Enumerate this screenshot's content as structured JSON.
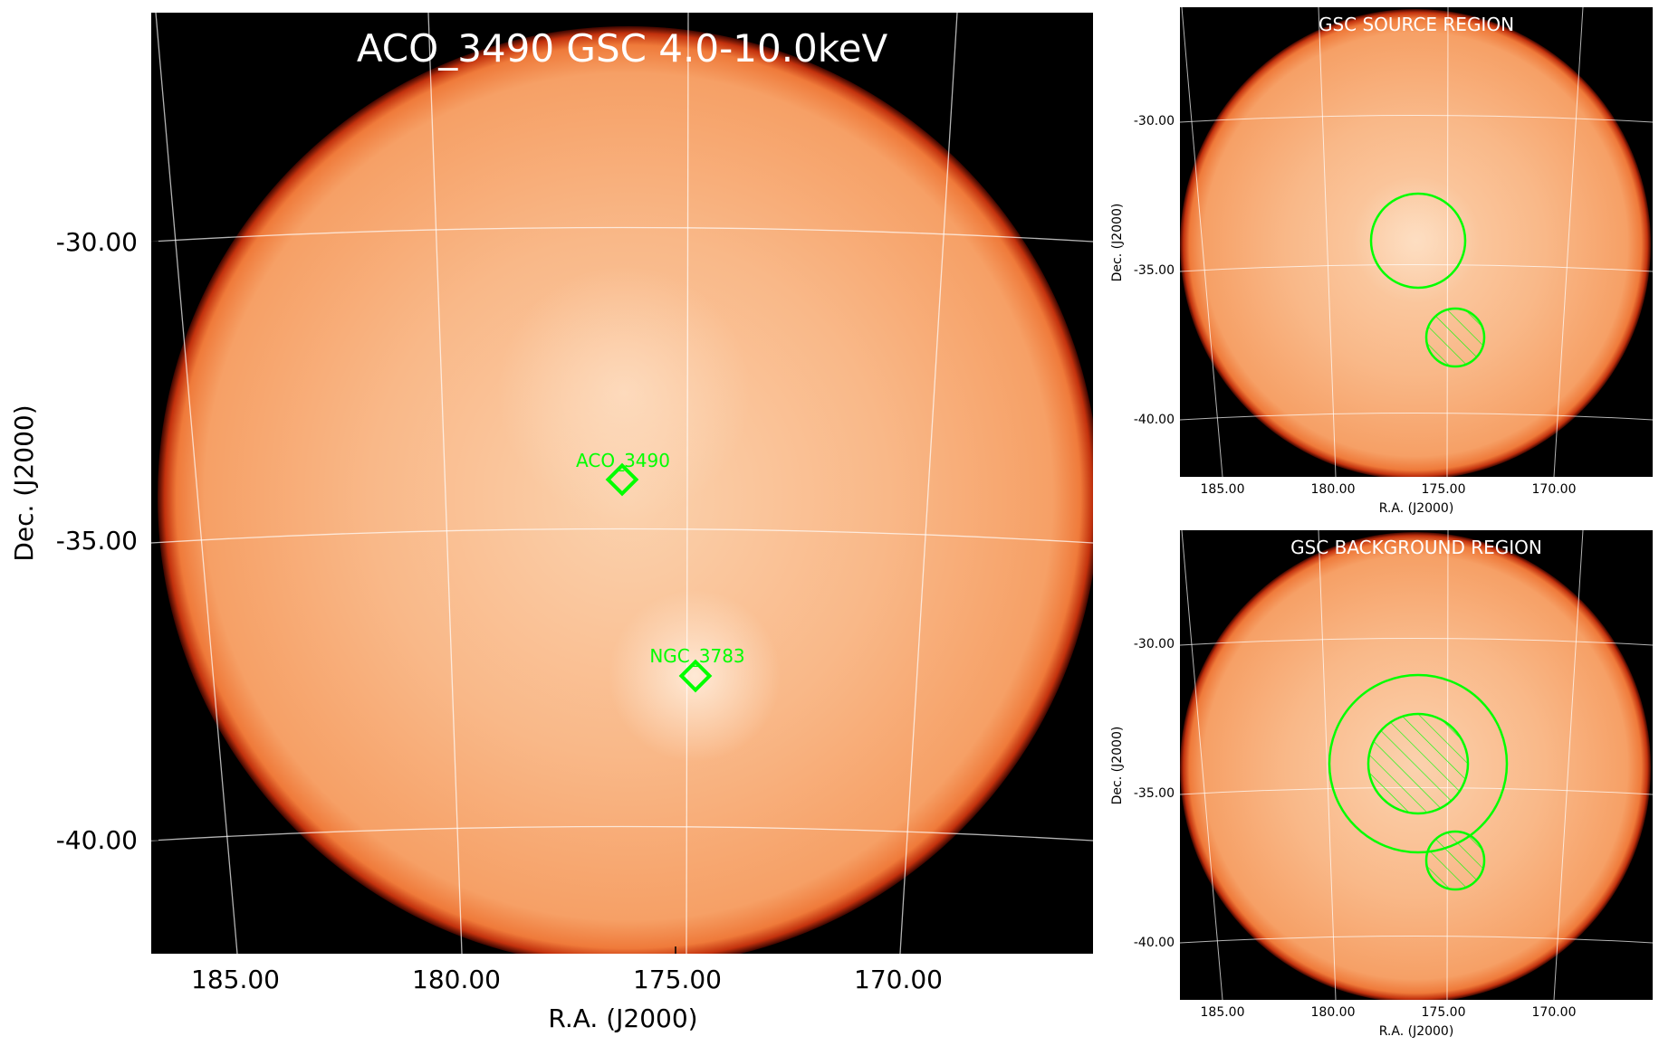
{
  "main": {
    "title": "ACO_3490 GSC 4.0-10.0keV",
    "xlabel": "R.A. (J2000)",
    "ylabel": "Dec. (J2000)",
    "x_ticks": [
      "185.00",
      "180.00",
      "175.00",
      "170.00"
    ],
    "y_ticks": [
      "-30.00",
      "-35.00",
      "-40.00"
    ],
    "sources": [
      {
        "label": "ACO_3490",
        "marker": "diamond"
      },
      {
        "label": "NGC_3783",
        "marker": "diamond"
      }
    ]
  },
  "source_panel": {
    "title": "GSC SOURCE REGION",
    "xlabel": "R.A. (J2000)",
    "ylabel": "Dec. (J2000)",
    "x_ticks": [
      "185.00",
      "180.00",
      "175.00",
      "170.00"
    ],
    "y_ticks": [
      "-30.00",
      "-35.00",
      "-40.00"
    ]
  },
  "background_panel": {
    "title": "GSC BACKGROUND REGION",
    "xlabel": "R.A. (J2000)",
    "ylabel": "Dec. (J2000)",
    "x_ticks": [
      "185.00",
      "180.00",
      "175.00",
      "170.00"
    ],
    "y_ticks": [
      "-30.00",
      "-35.00",
      "-40.00"
    ]
  },
  "colors": {
    "background": "#000000",
    "disk": "#f9b27e",
    "disk_edge": "#d9481a",
    "region": "#00ff00",
    "grid": "#ffffff",
    "title_text": "#ffffff"
  }
}
